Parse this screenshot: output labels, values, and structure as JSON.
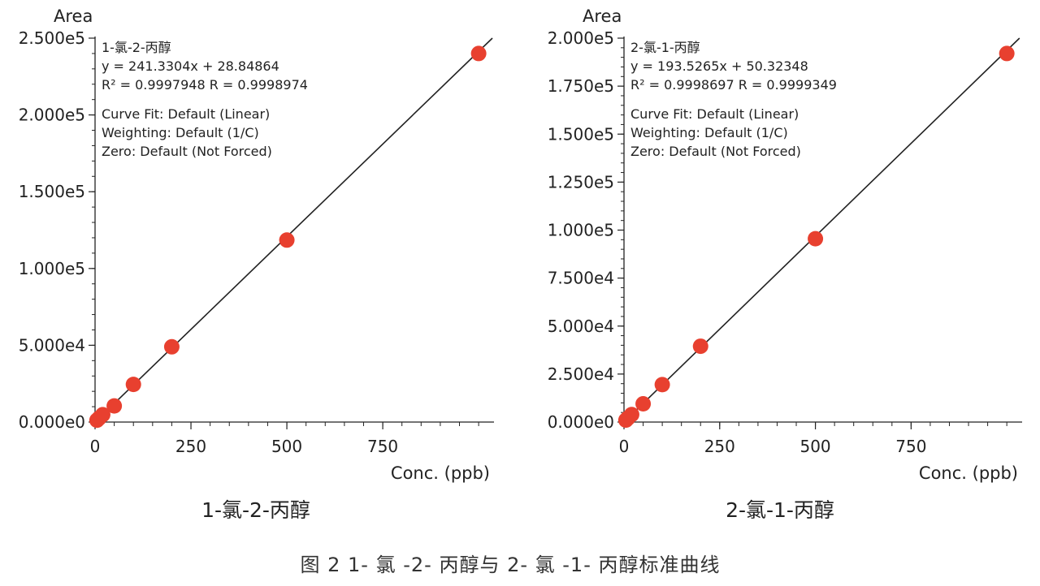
{
  "chart_data": [
    {
      "type": "scatter",
      "title": "1-氯-2-丙醇",
      "subcaption": "1-氯-2-丙醇",
      "xlabel": "Conc. (ppb)",
      "ylabel": "Area",
      "xlim": [
        0,
        1040
      ],
      "ylim": [
        0,
        250000
      ],
      "x_ticks": [
        0,
        250,
        500,
        750
      ],
      "x_tick_labels": [
        "0",
        "250",
        "500",
        "750"
      ],
      "y_ticks": [
        0,
        50000,
        100000,
        150000,
        200000,
        250000
      ],
      "y_tick_labels": [
        "0.000e0",
        "5.000e4",
        "1.000e5",
        "1.500e5",
        "2.000e5",
        "2.500e5"
      ],
      "points": [
        {
          "x": 5,
          "y": 1200
        },
        {
          "x": 10,
          "y": 2400
        },
        {
          "x": 20,
          "y": 4800
        },
        {
          "x": 50,
          "y": 10500
        },
        {
          "x": 100,
          "y": 24500
        },
        {
          "x": 200,
          "y": 49000
        },
        {
          "x": 500,
          "y": 118500
        },
        {
          "x": 1000,
          "y": 240000
        }
      ],
      "fit": {
        "slope": 241.3304,
        "intercept": 28.84864
      },
      "annotation_lines": [
        "1-氯-2-丙醇",
        "y = 241.3304x + 28.84864",
        "R² = 0.9997948    R = 0.9998974",
        "Curve Fit: Default (Linear)",
        "Weighting: Default (1/C)",
        "Zero: Default (Not Forced)"
      ],
      "point_color": "#e8402f",
      "line_color": "#222222",
      "grid": false
    },
    {
      "type": "scatter",
      "title": "2-氯-1-丙醇",
      "subcaption": "2-氯-1-丙醇",
      "xlabel": "Conc. (ppb)",
      "ylabel": "Area",
      "xlim": [
        0,
        1040
      ],
      "ylim": [
        0,
        200000
      ],
      "x_ticks": [
        0,
        250,
        500,
        750
      ],
      "x_tick_labels": [
        "0",
        "250",
        "500",
        "750"
      ],
      "y_ticks": [
        0,
        25000,
        50000,
        75000,
        100000,
        125000,
        150000,
        175000,
        200000
      ],
      "y_tick_labels": [
        "0.000e0",
        "2.500e4",
        "5.000e4",
        "7.500e4",
        "1.000e5",
        "1.250e5",
        "1.500e5",
        "1.750e5",
        "2.000e5"
      ],
      "points": [
        {
          "x": 5,
          "y": 1000
        },
        {
          "x": 10,
          "y": 2000
        },
        {
          "x": 20,
          "y": 3900
        },
        {
          "x": 50,
          "y": 9500
        },
        {
          "x": 100,
          "y": 19500
        },
        {
          "x": 200,
          "y": 39500
        },
        {
          "x": 500,
          "y": 95500
        },
        {
          "x": 1000,
          "y": 192000
        }
      ],
      "fit": {
        "slope": 193.5265,
        "intercept": 50.32348
      },
      "annotation_lines": [
        "2-氯-1-丙醇",
        "y = 193.5265x + 50.32348",
        "R² = 0.9998697    R = 0.9999349",
        "Curve Fit: Default (Linear)",
        "Weighting: Default (1/C)",
        "Zero: Default (Not Forced)"
      ],
      "point_color": "#e8402f",
      "line_color": "#222222",
      "grid": false
    }
  ],
  "figure_caption": "图 2    1- 氯 -2- 丙醇与 2- 氯 -1- 丙醇标准曲线"
}
